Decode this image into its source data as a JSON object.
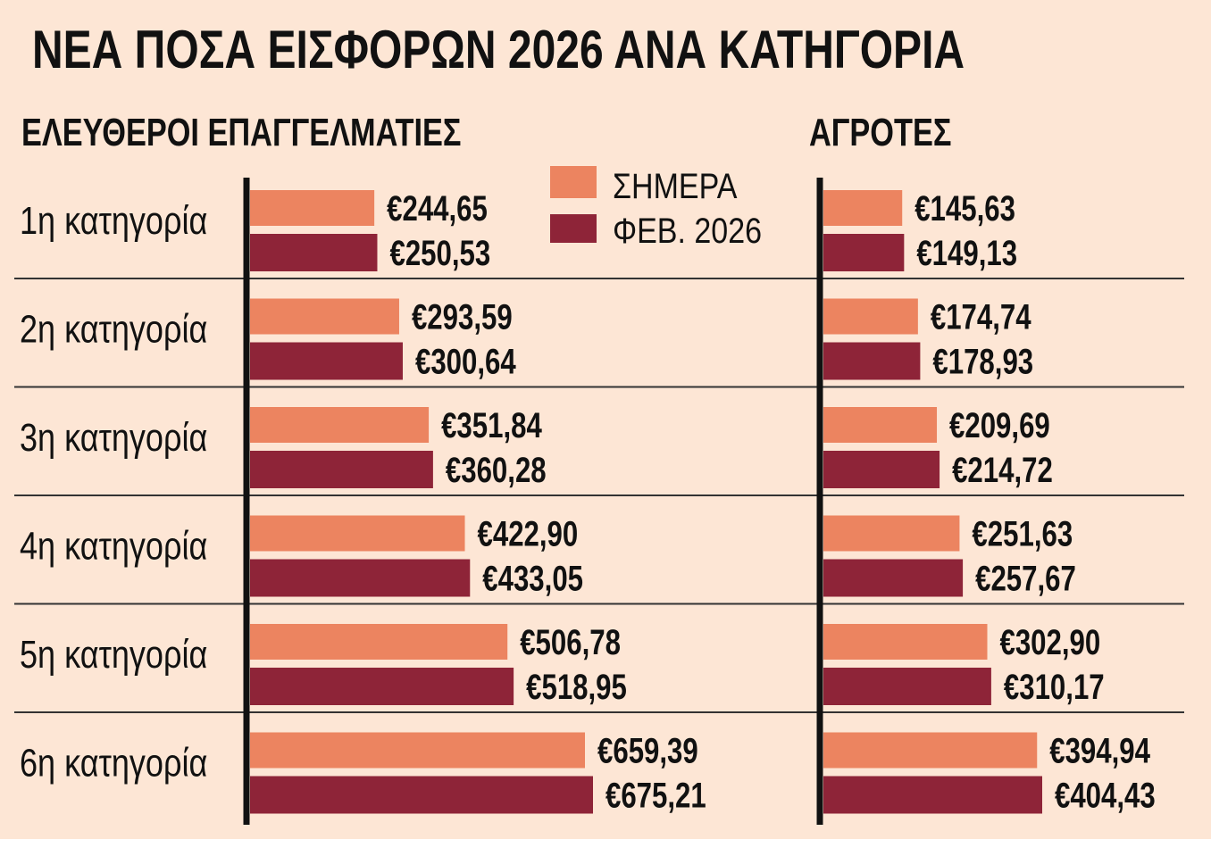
{
  "title": "ΝΕΑ ΠΟΣΑ ΕΙΣΦΟΡΩΝ 2026 ΑΝΑ ΚΑΤΗΓΟΡΙΑ",
  "colors": {
    "background": "#fde6d5",
    "current": "#ec8460",
    "feb2026": "#8e2438",
    "text": "#111111",
    "axis": "#111111",
    "divider": "#333333"
  },
  "legend": [
    {
      "label": "ΣΗΜΕΡΑ",
      "color": "#ec8460"
    },
    {
      "label": "ΦΕΒ. 2026",
      "color": "#8e2438"
    }
  ],
  "chart_data": [
    {
      "type": "bar",
      "orientation": "horizontal",
      "title": "ΕΛΕΥΘΕΡΟΙ ΕΠΑΓΓΕΛΜΑΤΙΕΣ",
      "categories": [
        "1η κατηγορία",
        "2η κατηγορία",
        "3η κατηγορία",
        "4η κατηγορία",
        "5η κατηγορία",
        "6η κατηγορία"
      ],
      "series": [
        {
          "name": "ΣΗΜΕΡΑ",
          "values": [
            244.65,
            293.59,
            351.84,
            422.9,
            506.78,
            659.39
          ],
          "labels": [
            "€244,65",
            "€293,59",
            "€351,84",
            "€422,90",
            "€506,78",
            "€659,39"
          ]
        },
        {
          "name": "ΦΕΒ. 2026",
          "values": [
            250.53,
            300.64,
            360.28,
            433.05,
            518.95,
            675.21
          ],
          "labels": [
            "€250,53",
            "€300,64",
            "€360,28",
            "€433,05",
            "€518,95",
            "€675,21"
          ]
        }
      ]
    },
    {
      "type": "bar",
      "orientation": "horizontal",
      "title": "ΑΓΡΟΤΕΣ",
      "categories": [
        "1η κατηγορία",
        "2η κατηγορία",
        "3η κατηγορία",
        "4η κατηγορία",
        "5η κατηγορία",
        "6η κατηγορία"
      ],
      "series": [
        {
          "name": "ΣΗΜΕΡΑ",
          "values": [
            145.63,
            174.74,
            209.69,
            251.63,
            302.9,
            394.94
          ],
          "labels": [
            "€145,63",
            "€174,74",
            "€209,69",
            "€251,63",
            "€302,90",
            "€394,94"
          ]
        },
        {
          "name": "ΦΕΒ. 2026",
          "values": [
            149.13,
            178.93,
            214.72,
            257.67,
            310.17,
            404.43
          ],
          "labels": [
            "€149,13",
            "€178,93",
            "€214,72",
            "€257,67",
            "€310,17",
            "€404,43"
          ]
        }
      ]
    }
  ]
}
